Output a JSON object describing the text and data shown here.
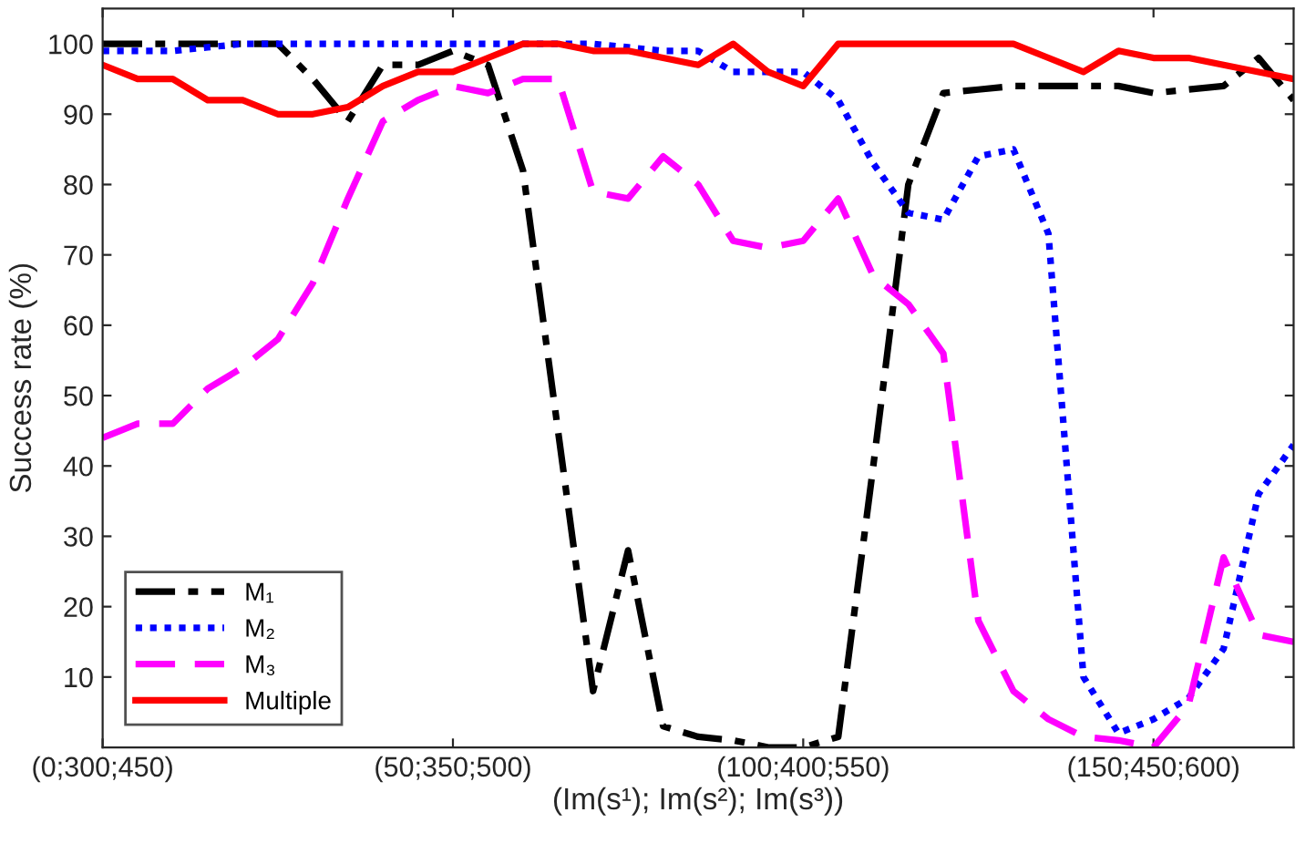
{
  "chart_data": {
    "type": "line",
    "xlabel": "(Im(s¹); Im(s²); Im(s³))",
    "ylabel": "Success rate (%)",
    "categories": [
      "(0;300;450)",
      null,
      null,
      null,
      null,
      null,
      null,
      null,
      null,
      null,
      "(50;350;500)",
      null,
      null,
      null,
      null,
      null,
      null,
      null,
      null,
      null,
      "(100;400;550)",
      null,
      null,
      null,
      null,
      null,
      null,
      null,
      null,
      null,
      "(150;450;600)",
      null,
      null,
      null,
      null
    ],
    "ylim": [
      0,
      105
    ],
    "yticks": [
      10,
      20,
      30,
      40,
      50,
      60,
      70,
      80,
      90,
      100
    ],
    "grid": false,
    "legend": "bottom left",
    "marker": "none",
    "series": [
      {
        "name": "M₁",
        "color": "#000000",
        "line_style": "dashdot",
        "values": [
          100,
          100,
          100,
          100,
          100,
          100,
          95,
          89,
          97,
          97,
          99,
          97,
          82,
          45,
          8,
          28,
          3,
          1.5,
          1,
          0,
          0,
          1.5,
          40,
          80,
          93,
          93.5,
          94,
          94,
          94,
          94,
          93,
          93.5,
          94,
          98,
          92
        ]
      },
      {
        "name": "M₂",
        "color": "#0000ff",
        "line_style": "dotted",
        "values": [
          99,
          99,
          99,
          99.5,
          100,
          100,
          100,
          100,
          100,
          100,
          100,
          100,
          100,
          100,
          100,
          99.5,
          99,
          99,
          96,
          96,
          96,
          92,
          83,
          76,
          75,
          84,
          85,
          73,
          10,
          2,
          4,
          7,
          14,
          36,
          43
        ]
      },
      {
        "name": "M₃",
        "color": "#ff00ff",
        "line_style": "dashed",
        "values": [
          44,
          46,
          46,
          51,
          54,
          58,
          66,
          78,
          89,
          92,
          94,
          93,
          95,
          95,
          79,
          78,
          84,
          80,
          72,
          71,
          72,
          78,
          67,
          63,
          56,
          18,
          8,
          4,
          1.5,
          1,
          0,
          6,
          27,
          16,
          15
        ]
      },
      {
        "name": "Multiple",
        "color": "#ff0000",
        "line_style": "solid",
        "values": [
          97,
          95,
          95,
          92,
          92,
          90,
          90,
          91,
          94,
          96,
          96,
          98,
          100,
          100,
          99,
          99,
          98,
          97,
          100,
          96,
          94,
          100,
          100,
          100,
          100,
          100,
          100,
          98,
          96,
          99,
          98,
          98,
          97,
          96,
          95
        ]
      }
    ]
  }
}
